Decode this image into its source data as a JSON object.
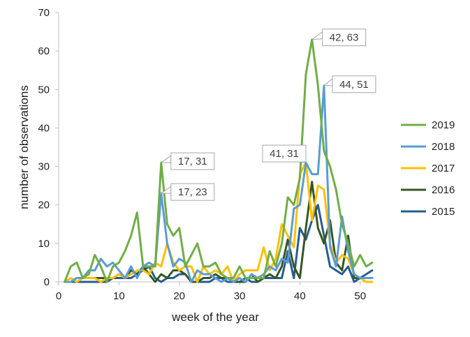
{
  "chart_data": {
    "type": "line",
    "xlabel": "week of the year",
    "ylabel": "number of observations",
    "xlim": [
      0,
      52
    ],
    "ylim": [
      0,
      70
    ],
    "xticks": [
      0,
      10,
      20,
      30,
      40,
      50
    ],
    "yticks": [
      0,
      10,
      20,
      30,
      40,
      50,
      60,
      70
    ],
    "grid": false,
    "legend_position": "right",
    "series": [
      {
        "name": "2019",
        "color": "#70AD47",
        "x": [
          1,
          2,
          3,
          4,
          5,
          6,
          7,
          8,
          9,
          10,
          11,
          12,
          13,
          14,
          15,
          16,
          17,
          18,
          19,
          20,
          21,
          22,
          23,
          24,
          25,
          26,
          27,
          28,
          29,
          30,
          31,
          32,
          33,
          34,
          35,
          36,
          37,
          38,
          39,
          40,
          41,
          42,
          43,
          44,
          45,
          46,
          47,
          48,
          49,
          50,
          51,
          52
        ],
        "y": [
          0,
          4,
          5,
          1,
          2,
          7,
          4,
          0,
          4,
          5,
          8,
          12,
          18,
          4,
          4,
          4,
          31,
          15,
          12,
          14,
          4,
          7,
          10,
          4,
          4,
          5,
          2,
          1,
          1,
          4,
          1,
          1,
          1,
          1,
          8,
          4,
          10,
          22,
          20,
          27,
          54,
          63,
          51,
          34,
          30,
          24,
          15,
          10,
          4,
          7,
          4,
          5
        ]
      },
      {
        "name": "2018",
        "color": "#5B9BD5",
        "x": [
          1,
          2,
          3,
          4,
          5,
          6,
          7,
          8,
          9,
          10,
          11,
          12,
          13,
          14,
          15,
          16,
          17,
          18,
          19,
          20,
          21,
          22,
          23,
          24,
          25,
          26,
          27,
          28,
          29,
          30,
          31,
          32,
          33,
          34,
          35,
          36,
          37,
          38,
          39,
          40,
          41,
          42,
          43,
          44,
          45,
          46,
          47,
          48,
          49,
          50,
          51,
          52
        ],
        "y": [
          0,
          0,
          1,
          1,
          3,
          3,
          6,
          4,
          5,
          3,
          1,
          4,
          1,
          4,
          5,
          4,
          23,
          10,
          4,
          6,
          5,
          0,
          3,
          2,
          2,
          1,
          0,
          1,
          0,
          1,
          0,
          2,
          1,
          2,
          4,
          3,
          6,
          5,
          19,
          20,
          31,
          28,
          28,
          51,
          9,
          4,
          17,
          8,
          2,
          1,
          1,
          1
        ]
      },
      {
        "name": "2017",
        "color": "#FFC000",
        "x": [
          1,
          2,
          3,
          4,
          5,
          6,
          7,
          8,
          9,
          10,
          11,
          12,
          13,
          14,
          15,
          16,
          17,
          18,
          19,
          20,
          21,
          22,
          23,
          24,
          25,
          26,
          27,
          28,
          29,
          30,
          31,
          32,
          33,
          34,
          35,
          36,
          37,
          38,
          39,
          40,
          41,
          42,
          43,
          44,
          45,
          46,
          47,
          48,
          49,
          50,
          51,
          52
        ],
        "y": [
          0,
          1,
          0,
          1,
          1,
          1,
          0,
          1,
          1,
          2,
          1,
          2,
          3,
          3,
          2,
          5,
          4,
          10,
          5,
          3,
          4,
          4,
          0,
          4,
          2,
          3,
          2,
          4,
          0,
          2,
          3,
          3,
          3,
          9,
          3,
          6,
          15,
          12,
          9,
          28,
          31,
          16,
          25,
          24,
          10,
          5,
          7,
          6,
          2,
          1,
          0,
          0
        ]
      },
      {
        "name": "2016",
        "color": "#375623",
        "x": [
          1,
          2,
          3,
          4,
          5,
          6,
          7,
          8,
          9,
          10,
          11,
          12,
          13,
          14,
          15,
          16,
          17,
          18,
          19,
          20,
          21,
          22,
          23,
          24,
          25,
          26,
          27,
          28,
          29,
          30,
          31,
          32,
          33,
          34,
          35,
          36,
          37,
          38,
          39,
          40,
          41,
          42,
          43,
          44,
          45,
          46,
          47,
          48,
          49,
          50,
          51,
          52
        ],
        "y": [
          0,
          0,
          1,
          1,
          1,
          1,
          1,
          1,
          1,
          2,
          1,
          3,
          2,
          4,
          2,
          0,
          2,
          1,
          3,
          3,
          2,
          0,
          0,
          1,
          1,
          2,
          1,
          1,
          0,
          0,
          0,
          2,
          0,
          1,
          2,
          1,
          4,
          11,
          4,
          1,
          14,
          26,
          14,
          10,
          16,
          5,
          3,
          12,
          1,
          1,
          1,
          1
        ]
      },
      {
        "name": "2015",
        "color": "#255E91",
        "x": [
          1,
          2,
          3,
          4,
          5,
          6,
          7,
          8,
          9,
          10,
          11,
          12,
          13,
          14,
          15,
          16,
          17,
          18,
          19,
          20,
          21,
          22,
          23,
          24,
          25,
          26,
          27,
          28,
          29,
          30,
          31,
          32,
          33,
          34,
          35,
          36,
          37,
          38,
          39,
          40,
          41,
          42,
          43,
          44,
          45,
          46,
          47,
          48,
          49,
          50,
          51,
          52
        ],
        "y": [
          0,
          0,
          0,
          0,
          0,
          0,
          0,
          0,
          1,
          1,
          1,
          1,
          2,
          3,
          4,
          1,
          0,
          1,
          1,
          2,
          2,
          0,
          0,
          0,
          0,
          1,
          1,
          0,
          0,
          0,
          1,
          0,
          0,
          1,
          1,
          1,
          1,
          8,
          1,
          14,
          11,
          16,
          20,
          12,
          4,
          3,
          2,
          4,
          0,
          1,
          2,
          3
        ]
      }
    ],
    "annotations": [
      {
        "label": "42, 63",
        "x": 42,
        "y": 63
      },
      {
        "label": "44, 51",
        "x": 44,
        "y": 51
      },
      {
        "label": "17, 31",
        "x": 17,
        "y": 31
      },
      {
        "label": "17, 23",
        "x": 17,
        "y": 23
      },
      {
        "label": "41, 31",
        "x": 41,
        "y": 31
      }
    ]
  }
}
